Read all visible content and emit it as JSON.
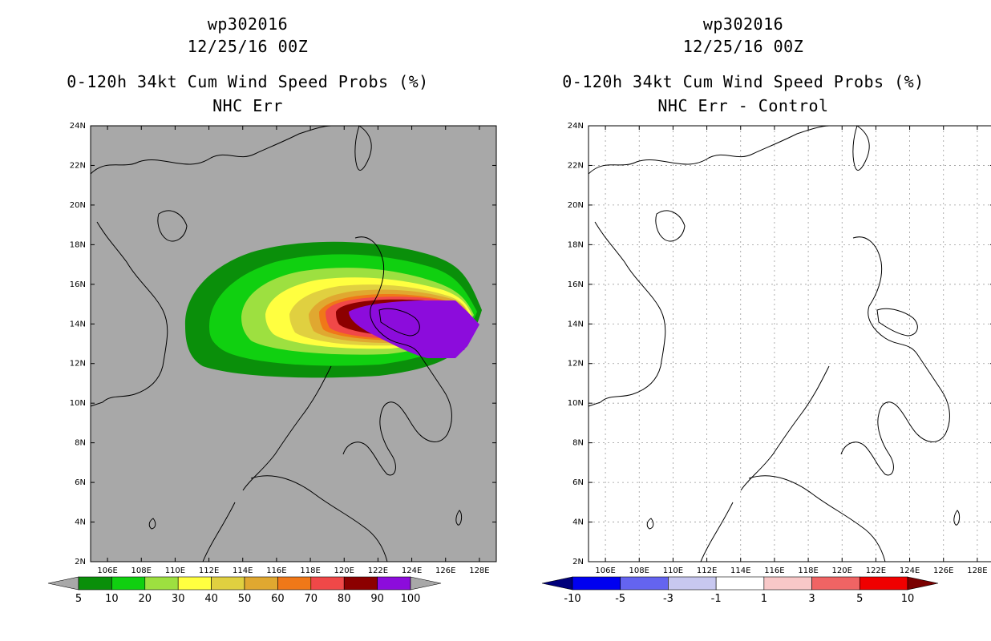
{
  "left": {
    "title_line1": "wp302016",
    "title_line2": "12/25/16 00Z",
    "title_line3": "0-120h 34kt Cum Wind Speed Probs (%)",
    "title_line4": "NHC Err",
    "lat_labels": [
      "24N",
      "22N",
      "20N",
      "18N",
      "16N",
      "14N",
      "12N",
      "10N",
      "8N",
      "6N",
      "4N",
      "2N"
    ],
    "lon_labels": [
      "106E",
      "108E",
      "110E",
      "112E",
      "114E",
      "116E",
      "118E",
      "120E",
      "122E",
      "124E",
      "126E",
      "128E"
    ],
    "colorbar": {
      "labels": [
        "5",
        "10",
        "20",
        "30",
        "40",
        "50",
        "60",
        "70",
        "80",
        "90",
        "100"
      ],
      "colors": [
        "#a8a8a8",
        "#0a8f0a",
        "#10d010",
        "#9de040",
        "#ffff40",
        "#e0d040",
        "#e0a830",
        "#f07818",
        "#f04848",
        "#8c0000",
        "#8c0cdc",
        "#a8a8a8"
      ]
    }
  },
  "right": {
    "title_line1": "wp302016",
    "title_line2": "12/25/16 00Z",
    "title_line3": "0-120h 34kt Cum Wind Speed Probs (%)",
    "title_line4": "NHC Err - Control",
    "lat_labels": [
      "24N",
      "22N",
      "20N",
      "18N",
      "16N",
      "14N",
      "12N",
      "10N",
      "8N",
      "6N",
      "4N",
      "2N"
    ],
    "lon_labels": [
      "106E",
      "108E",
      "110E",
      "112E",
      "114E",
      "116E",
      "118E",
      "120E",
      "122E",
      "124E",
      "126E",
      "128E"
    ],
    "colorbar": {
      "labels": [
        "-10",
        "-5",
        "-3",
        "-1",
        "1",
        "3",
        "5",
        "10"
      ],
      "colors": [
        "#00007a",
        "#0000f0",
        "#6464f0",
        "#c8c8f0",
        "#ffffff",
        "#f8c8c8",
        "#f06464",
        "#f00000",
        "#7a0000"
      ]
    }
  },
  "colors": {
    "map_background_left": "#a8a8a8",
    "map_background_right": "#ffffff",
    "coastline": "#000000"
  }
}
